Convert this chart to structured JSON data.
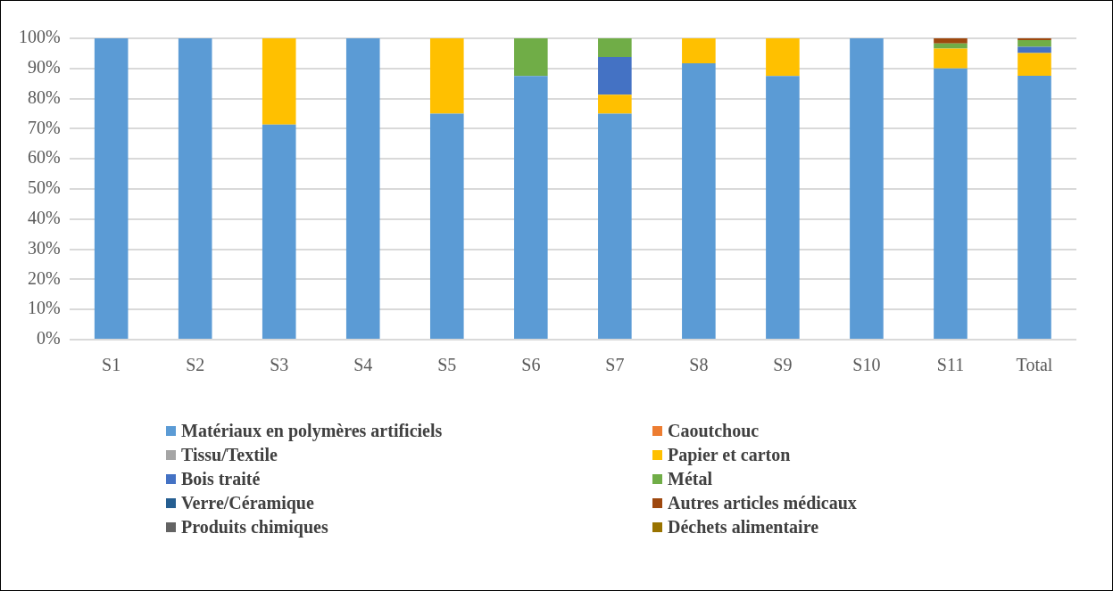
{
  "chart_data": {
    "type": "bar",
    "stacked": true,
    "grid": "y",
    "legend": "bottom",
    "categories": [
      "S1",
      "S2",
      "S3",
      "S4",
      "S5",
      "S6",
      "S7",
      "S8",
      "S9",
      "S10",
      "S11",
      "Total"
    ],
    "ylim": [
      0,
      100
    ],
    "yticks": [
      {
        "value": 0,
        "label": "0%"
      },
      {
        "value": 10,
        "label": "10%"
      },
      {
        "value": 20,
        "label": "20%"
      },
      {
        "value": 30,
        "label": "30%"
      },
      {
        "value": 40,
        "label": "40%"
      },
      {
        "value": 50,
        "label": "50%"
      },
      {
        "value": 60,
        "label": "60%"
      },
      {
        "value": 70,
        "label": "70%"
      },
      {
        "value": 80,
        "label": "80%"
      },
      {
        "value": 90,
        "label": "90%"
      },
      {
        "value": 100,
        "label": "100%"
      }
    ],
    "series": [
      {
        "name": "Matériaux en polymères artificiels",
        "color": "#5b9bd5",
        "values": [
          100,
          100,
          71.4,
          100,
          75,
          87.5,
          75,
          91.7,
          87.5,
          100,
          90,
          87.6
        ]
      },
      {
        "name": "Caoutchouc",
        "color": "#ed7d31",
        "values": [
          0,
          0,
          0,
          0,
          0,
          0,
          0,
          0,
          0,
          0,
          0,
          0
        ]
      },
      {
        "name": "Tissu/Textile",
        "color": "#a5a5a5",
        "values": [
          0,
          0,
          0,
          0,
          0,
          0,
          0,
          0,
          0,
          0,
          0,
          0
        ]
      },
      {
        "name": "Papier et carton",
        "color": "#ffc000",
        "values": [
          0,
          0,
          28.6,
          0,
          25,
          0,
          6.3,
          8.3,
          12.5,
          0,
          6.6,
          7.5
        ]
      },
      {
        "name": "Bois traité",
        "color": "#4472c4",
        "values": [
          0,
          0,
          0,
          0,
          0,
          0,
          12.5,
          0,
          0,
          0,
          0,
          2.1
        ]
      },
      {
        "name": "Métal",
        "color": "#70ad47",
        "values": [
          0,
          0,
          0,
          0,
          0,
          12.5,
          6.2,
          0,
          0,
          0,
          1.7,
          2.2
        ]
      },
      {
        "name": "Verre/Céramique",
        "color": "#255e91",
        "values": [
          0,
          0,
          0,
          0,
          0,
          0,
          0,
          0,
          0,
          0,
          0,
          0
        ]
      },
      {
        "name": "Autres articles médicaux",
        "color": "#9e480e",
        "values": [
          0,
          0,
          0,
          0,
          0,
          0,
          0,
          0,
          0,
          0,
          1.7,
          0.6
        ]
      },
      {
        "name": "Produits chimiques",
        "color": "#636363",
        "values": [
          0,
          0,
          0,
          0,
          0,
          0,
          0,
          0,
          0,
          0,
          0,
          0
        ]
      },
      {
        "name": "Déchets alimentaire",
        "color": "#997300",
        "values": [
          0,
          0,
          0,
          0,
          0,
          0,
          0,
          0,
          0,
          0,
          0,
          0
        ]
      }
    ]
  }
}
